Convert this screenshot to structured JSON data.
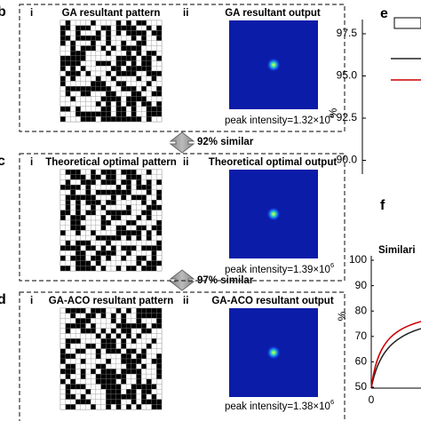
{
  "panels": [
    {
      "label": "b",
      "sub_left": "i",
      "title_left": "GA resultant pattern",
      "sub_right": "ii",
      "title_right": "GA resultant output",
      "peak_label": "peak intensity=1.32×10",
      "peak_exp": "6"
    },
    {
      "label": "c",
      "sub_left": "i",
      "title_left": "Theoretical optimal pattern",
      "sub_right": "ii",
      "title_right": "Theoretical optimal output",
      "peak_label": "peak intensity=1.39×10",
      "peak_exp": "6"
    },
    {
      "label": "d",
      "sub_left": "i",
      "title_left": "GA-ACO resultant pattern",
      "sub_right": "ii",
      "title_right": "GA-ACO resultant output",
      "peak_label": "peak intensity=1.38×10",
      "peak_exp": "6"
    }
  ],
  "similarity": [
    "92% similar",
    "97% similar"
  ],
  "panel_e": {
    "label": "e",
    "axis_title": "%",
    "yticks": [
      "97.5",
      "95.0",
      "92.5",
      "90.0"
    ]
  },
  "panel_f": {
    "label": "f",
    "title": "Similari",
    "axis_title": "%",
    "yticks": [
      "100",
      "90",
      "80",
      "70",
      "60",
      "50"
    ],
    "xtick": "0"
  }
}
